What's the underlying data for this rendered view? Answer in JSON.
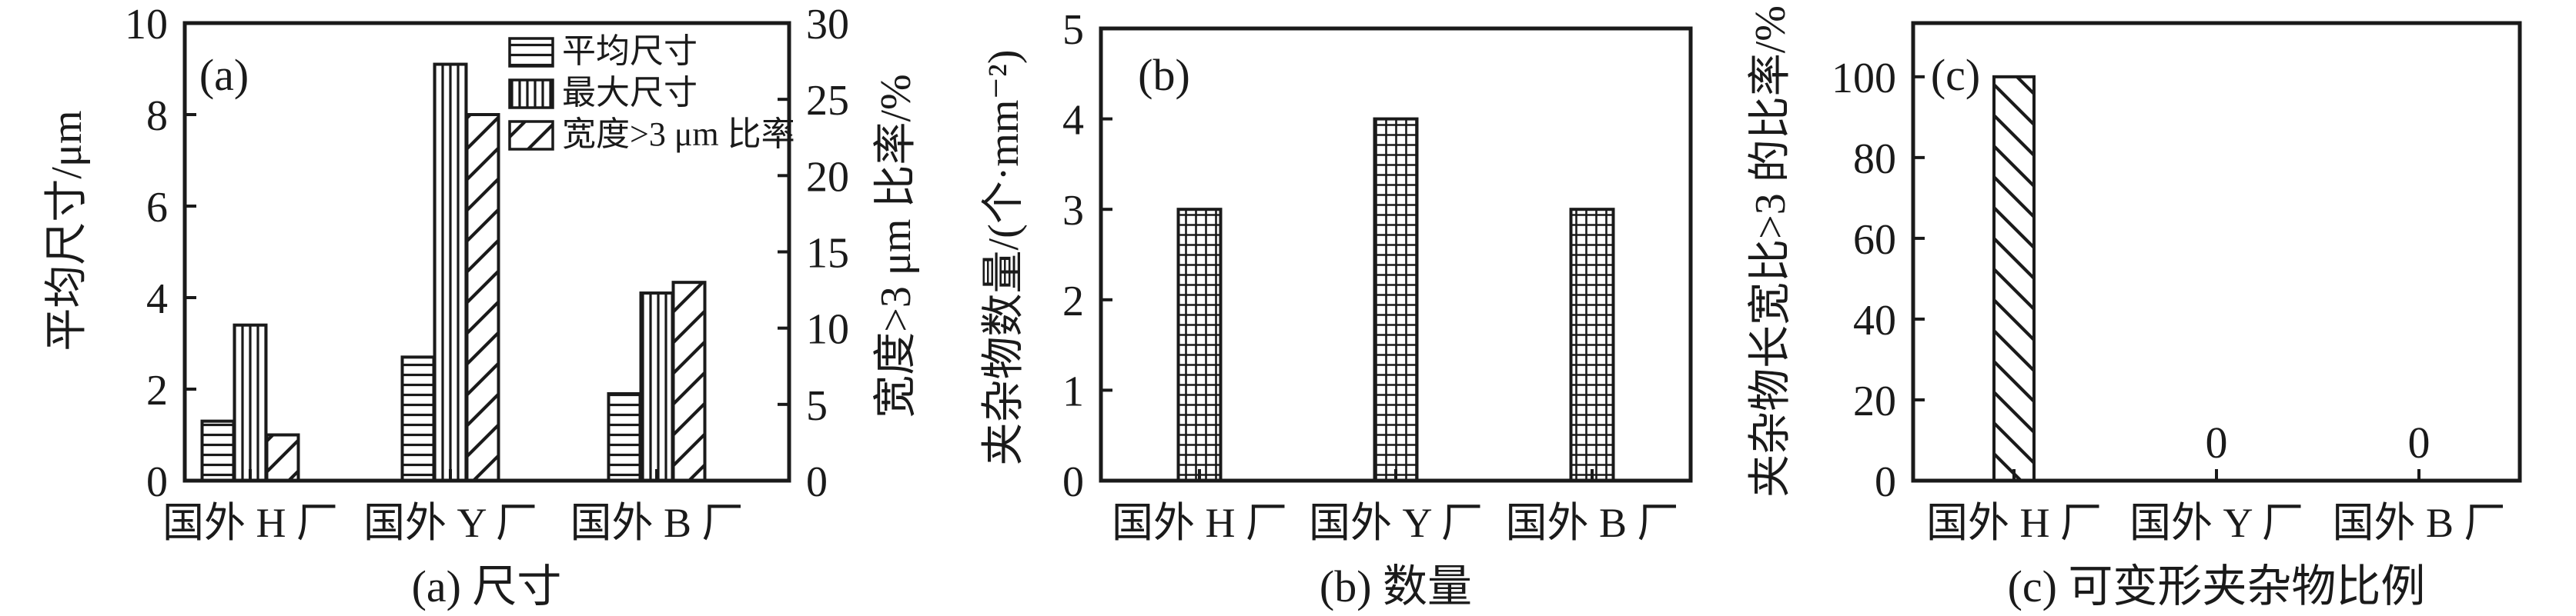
{
  "colors": {
    "ink": "#1a1a1a",
    "background": "#ffffff"
  },
  "chart_data": [
    {
      "type": "bar",
      "panel_label": "(a)",
      "caption": "(a) 尺寸",
      "categories": [
        "国外 H 厂",
        "国外 Y 厂",
        "国外 B 厂"
      ],
      "left_axis": {
        "label": "平均尺寸/μm",
        "min": 0,
        "max": 10,
        "ticks": [
          0,
          2,
          4,
          6,
          8,
          10
        ]
      },
      "right_axis": {
        "label": "宽度>3 μm 比率/%",
        "min": 0,
        "max": 30,
        "ticks": [
          0,
          5,
          10,
          15,
          20,
          25,
          30
        ]
      },
      "series": [
        {
          "name": "平均尺寸",
          "axis": "left",
          "hatch": "horizontal",
          "values": [
            1.3,
            2.7,
            1.9
          ]
        },
        {
          "name": "最大尺寸",
          "axis": "left",
          "hatch": "vertical",
          "values": [
            3.4,
            9.1,
            4.1
          ]
        },
        {
          "name": "宽度>3 μm 比率",
          "axis": "right",
          "hatch": "diagonal-up",
          "values": [
            3,
            24,
            13
          ]
        }
      ],
      "legend": {
        "position": "top-right",
        "entries": [
          "平均尺寸",
          "最大尺寸",
          "宽度>3 μm 比率"
        ]
      },
      "grid": false
    },
    {
      "type": "bar",
      "panel_label": "(b)",
      "caption": "(b) 数量",
      "categories": [
        "国外 H 厂",
        "国外 Y 厂",
        "国外 B 厂"
      ],
      "left_axis": {
        "label": "夹杂物数量/(个·mm⁻²)",
        "min": 0,
        "max": 5,
        "ticks": [
          0,
          1,
          2,
          3,
          4,
          5
        ]
      },
      "series": [
        {
          "axis": "left",
          "hatch": "grid",
          "values": [
            3,
            4,
            3
          ]
        }
      ],
      "grid": false
    },
    {
      "type": "bar",
      "panel_label": "(c)",
      "caption": "(c) 可变形夹杂物比例",
      "categories": [
        "国外 H 厂",
        "国外 Y 厂",
        "国外 B 厂"
      ],
      "left_axis": {
        "label": "夹杂物长宽比>3 的比率/%",
        "min": 0,
        "max": 100,
        "ticks": [
          0,
          20,
          40,
          60,
          80,
          100
        ]
      },
      "series": [
        {
          "axis": "left",
          "hatch": "diagonal-down",
          "values": [
            100,
            0,
            0
          ]
        }
      ],
      "value_labels": [
        "",
        "0",
        "0"
      ],
      "grid": false
    }
  ]
}
